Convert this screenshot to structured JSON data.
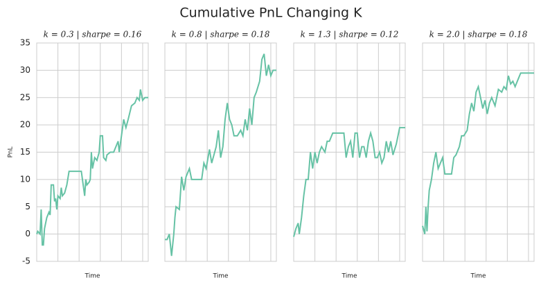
{
  "title": "Cumulative PnL Changing K",
  "chart_data": [
    {
      "type": "line",
      "title": "k = 0.3 | sharpe = 0.16",
      "x_label": "Time",
      "y_label": "PnL",
      "show_yticklabels": true,
      "color": "#66c2a5",
      "xlim": [
        0,
        100
      ],
      "xticks": [
        19,
        38,
        57,
        76,
        95
      ],
      "ylim": [
        -5,
        35
      ],
      "yticks": [
        -5,
        0,
        5,
        10,
        15,
        20,
        25,
        30,
        35
      ],
      "grid": true,
      "x": [
        0,
        1,
        3,
        4,
        5,
        6,
        7,
        9,
        10,
        11,
        12,
        13,
        15,
        16,
        17,
        18,
        19,
        21,
        22,
        23,
        25,
        27,
        29,
        32,
        35,
        40,
        43,
        44,
        45,
        47,
        48,
        49,
        50,
        52,
        54,
        56,
        57,
        59,
        60,
        62,
        63,
        66,
        69,
        73,
        74,
        76,
        78,
        80,
        82,
        85,
        88,
        90,
        92,
        93,
        95,
        97,
        100
      ],
      "values": [
        0,
        0.5,
        0,
        4.5,
        -2,
        -2,
        1,
        3,
        3.5,
        4,
        3.5,
        9,
        9,
        6,
        6.5,
        4.5,
        7,
        6.5,
        8.5,
        7,
        7.5,
        9,
        11.5,
        11.5,
        11.5,
        11.5,
        7,
        10,
        9,
        9.5,
        10,
        15,
        12,
        14,
        13.5,
        15,
        18,
        18,
        14,
        13.5,
        14.5,
        15,
        15,
        17,
        15,
        18,
        21,
        19.5,
        21,
        23.5,
        24,
        25,
        24.5,
        26.5,
        24.5,
        25,
        25
      ]
    },
    {
      "type": "line",
      "title": "k = 0.8 | sharpe = 0.18",
      "x_label": "Time",
      "show_yticklabels": false,
      "color": "#66c2a5",
      "xlim": [
        0,
        100
      ],
      "xticks": [
        19,
        38,
        57,
        76,
        95
      ],
      "ylim": [
        -5,
        35
      ],
      "yticks": [
        -5,
        0,
        5,
        10,
        15,
        20,
        25,
        30,
        35
      ],
      "grid": true,
      "x": [
        0,
        2,
        4,
        5,
        6,
        8,
        9,
        10,
        13,
        15,
        17,
        19,
        22,
        24,
        28,
        33,
        35,
        37,
        40,
        42,
        46,
        48,
        50,
        52,
        54,
        56,
        58,
        60,
        62,
        65,
        68,
        70,
        72,
        74,
        76,
        78,
        80,
        82,
        85,
        87,
        89,
        91,
        93,
        95,
        97,
        100
      ],
      "values": [
        -1,
        -1,
        0,
        -2,
        -4,
        0,
        3,
        5,
        4.5,
        10.5,
        8,
        10.5,
        12,
        10,
        10,
        10,
        13,
        12,
        15.5,
        13,
        16,
        19,
        14,
        16,
        21,
        24,
        21,
        20,
        18,
        18,
        19,
        18,
        21,
        19,
        23,
        20,
        25,
        26,
        28,
        32,
        33,
        29,
        31,
        29,
        30,
        30
      ]
    },
    {
      "type": "line",
      "title": "k = 1.3 | sharpe = 0.12",
      "x_label": "Time",
      "show_yticklabels": false,
      "color": "#66c2a5",
      "xlim": [
        0,
        100
      ],
      "xticks": [
        19,
        38,
        57,
        76,
        95
      ],
      "ylim": [
        -5,
        35
      ],
      "yticks": [
        -5,
        0,
        5,
        10,
        15,
        20,
        25,
        30,
        35
      ],
      "grid": true,
      "x": [
        0,
        2,
        4,
        5,
        7,
        9,
        11,
        13,
        15,
        17,
        19,
        21,
        23,
        25,
        28,
        30,
        32,
        35,
        40,
        45,
        47,
        49,
        51,
        53,
        55,
        57,
        59,
        61,
        63,
        65,
        67,
        69,
        71,
        73,
        75,
        77,
        79,
        81,
        83,
        85,
        87,
        89,
        92,
        95,
        100
      ],
      "values": [
        -0.5,
        1,
        2,
        0,
        3,
        7,
        10,
        10,
        15,
        12,
        15,
        13,
        15,
        16,
        15,
        17,
        17,
        18.5,
        18.5,
        18.5,
        14,
        16,
        17,
        14,
        18.5,
        18.5,
        14,
        16,
        16,
        14,
        17,
        18.5,
        17,
        14,
        14,
        15,
        13,
        14,
        17,
        15,
        17,
        14.5,
        16.5,
        19.5,
        19.5
      ]
    },
    {
      "type": "line",
      "title": "k = 2.0 | sharpe = 0.18",
      "x_label": "Time",
      "show_yticklabels": false,
      "color": "#66c2a5",
      "xlim": [
        0,
        100
      ],
      "xticks": [
        19,
        38,
        57,
        76,
        95
      ],
      "ylim": [
        -5,
        35
      ],
      "yticks": [
        -5,
        0,
        5,
        10,
        15,
        20,
        25,
        30,
        35
      ],
      "grid": true,
      "x": [
        0,
        2,
        3,
        4,
        5,
        6,
        8,
        10,
        12,
        14,
        16,
        18,
        20,
        23,
        26,
        28,
        30,
        33,
        35,
        37,
        40,
        42,
        44,
        46,
        48,
        50,
        52,
        54,
        56,
        58,
        60,
        62,
        65,
        68,
        71,
        73,
        75,
        77,
        79,
        81,
        83,
        86,
        88,
        100
      ],
      "values": [
        1.5,
        0,
        5,
        0.5,
        5,
        8,
        10,
        13,
        15,
        12,
        13,
        14,
        11,
        11,
        11,
        14,
        14.5,
        16,
        18,
        18,
        19,
        22,
        24,
        22.5,
        26,
        27,
        25,
        23,
        24.5,
        22,
        24,
        25,
        23.5,
        26.5,
        26,
        27,
        26.5,
        29,
        27.5,
        28,
        27,
        28.5,
        29.5,
        29.5
      ]
    }
  ]
}
